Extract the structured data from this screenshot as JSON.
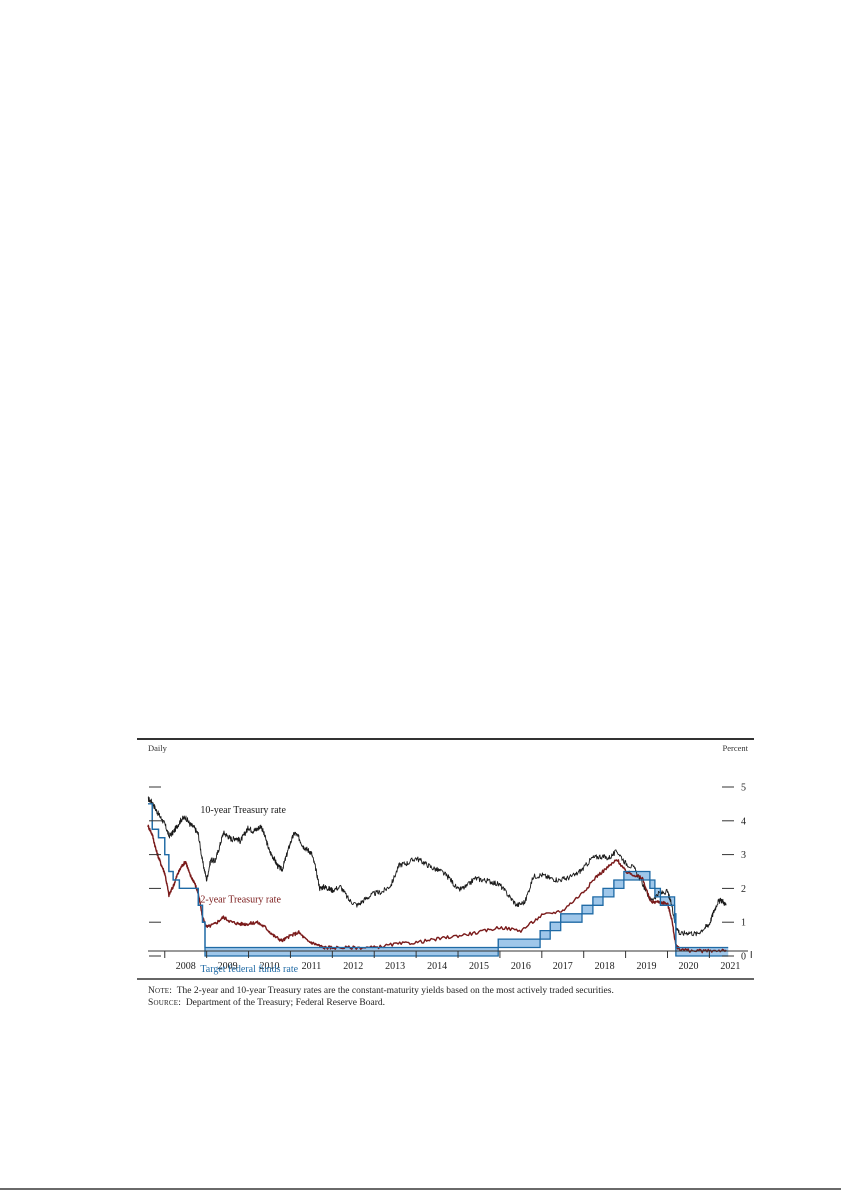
{
  "chart_data": {
    "type": "line",
    "frequency_label": "Daily",
    "unit_label": "Percent",
    "x_range": [
      2007.6,
      2021.85
    ],
    "ylim": [
      -0.3,
      5.3
    ],
    "y_ticks": [
      0,
      1,
      2,
      3,
      4,
      5
    ],
    "x_ticks": [
      {
        "label": "2008",
        "at": 2008
      },
      {
        "label": "2009",
        "at": 2009
      },
      {
        "label": "2010",
        "at": 2010
      },
      {
        "label": "2011",
        "at": 2011
      },
      {
        "label": "2012",
        "at": 2012
      },
      {
        "label": "2013",
        "at": 2013
      },
      {
        "label": "2014",
        "at": 2014
      },
      {
        "label": "2015",
        "at": 2015
      },
      {
        "label": "2016",
        "at": 2016
      },
      {
        "label": "2017",
        "at": 2017
      },
      {
        "label": "2018",
        "at": 2018
      },
      {
        "label": "2019",
        "at": 2019
      },
      {
        "label": "2020",
        "at": 2020
      },
      {
        "label": "2021",
        "at": 2021
      }
    ],
    "series": [
      {
        "name": "10-year Treasury rate",
        "color": "#1a1a1a",
        "x": [
          2007.6,
          2007.7,
          2007.8,
          2007.9,
          2008.0,
          2008.1,
          2008.2,
          2008.3,
          2008.4,
          2008.5,
          2008.6,
          2008.7,
          2008.8,
          2008.9,
          2009.0,
          2009.1,
          2009.2,
          2009.3,
          2009.4,
          2009.5,
          2009.6,
          2009.7,
          2009.8,
          2009.9,
          2010.0,
          2010.1,
          2010.2,
          2010.3,
          2010.4,
          2010.5,
          2010.6,
          2010.7,
          2010.8,
          2010.9,
          2011.0,
          2011.1,
          2011.2,
          2011.3,
          2011.4,
          2011.5,
          2011.6,
          2011.7,
          2011.8,
          2011.9,
          2012.0,
          2012.2,
          2012.4,
          2012.6,
          2012.8,
          2013.0,
          2013.2,
          2013.4,
          2013.6,
          2013.8,
          2014.0,
          2014.2,
          2014.4,
          2014.6,
          2014.8,
          2015.0,
          2015.2,
          2015.4,
          2015.6,
          2015.8,
          2016.0,
          2016.2,
          2016.4,
          2016.6,
          2016.8,
          2017.0,
          2017.2,
          2017.4,
          2017.6,
          2017.8,
          2018.0,
          2018.2,
          2018.4,
          2018.6,
          2018.8,
          2019.0,
          2019.2,
          2019.4,
          2019.6,
          2019.8,
          2020.0,
          2020.1,
          2020.2,
          2020.3,
          2020.5,
          2020.7,
          2020.9,
          2021.0,
          2021.1,
          2021.2,
          2021.3,
          2021.4
        ],
        "y": [
          4.65,
          4.55,
          4.3,
          4.1,
          3.9,
          3.55,
          3.65,
          3.85,
          4.05,
          4.1,
          3.9,
          3.8,
          3.6,
          2.8,
          2.25,
          2.85,
          2.8,
          3.2,
          3.65,
          3.55,
          3.45,
          3.5,
          3.4,
          3.6,
          3.8,
          3.7,
          3.75,
          3.85,
          3.5,
          3.1,
          2.9,
          2.65,
          2.55,
          2.95,
          3.35,
          3.65,
          3.5,
          3.25,
          3.15,
          3.05,
          2.6,
          2.0,
          2.05,
          2.0,
          1.95,
          2.05,
          1.65,
          1.5,
          1.7,
          1.85,
          1.9,
          2.1,
          2.7,
          2.75,
          2.9,
          2.75,
          2.6,
          2.5,
          2.3,
          1.95,
          2.05,
          2.3,
          2.25,
          2.2,
          2.1,
          1.8,
          1.5,
          1.6,
          2.35,
          2.4,
          2.3,
          2.25,
          2.3,
          2.4,
          2.6,
          2.9,
          2.95,
          2.9,
          3.1,
          2.75,
          2.6,
          2.15,
          1.65,
          1.85,
          1.9,
          1.5,
          0.9,
          0.65,
          0.7,
          0.65,
          0.85,
          0.95,
          1.3,
          1.6,
          1.65,
          1.5
        ]
      },
      {
        "name": "2-year Treasury rate",
        "color": "#7a1a1a",
        "x": [
          2007.6,
          2007.7,
          2007.8,
          2007.9,
          2008.0,
          2008.1,
          2008.2,
          2008.3,
          2008.4,
          2008.5,
          2008.6,
          2008.7,
          2008.8,
          2008.9,
          2009.0,
          2009.2,
          2009.4,
          2009.6,
          2009.8,
          2010.0,
          2010.2,
          2010.4,
          2010.6,
          2010.8,
          2011.0,
          2011.2,
          2011.4,
          2011.6,
          2011.8,
          2012.0,
          2012.5,
          2013.0,
          2013.5,
          2014.0,
          2014.5,
          2015.0,
          2015.5,
          2016.0,
          2016.5,
          2017.0,
          2017.5,
          2018.0,
          2018.3,
          2018.6,
          2018.8,
          2019.0,
          2019.2,
          2019.4,
          2019.6,
          2019.8,
          2020.0,
          2020.1,
          2020.2,
          2020.3,
          2020.6,
          2021.0,
          2021.4
        ],
        "y": [
          3.85,
          3.6,
          3.1,
          2.75,
          2.45,
          1.8,
          2.05,
          2.4,
          2.65,
          2.8,
          2.4,
          2.2,
          1.85,
          1.15,
          0.85,
          0.95,
          1.15,
          1.0,
          0.95,
          0.95,
          1.0,
          0.85,
          0.6,
          0.45,
          0.6,
          0.7,
          0.45,
          0.35,
          0.25,
          0.25,
          0.25,
          0.25,
          0.35,
          0.4,
          0.5,
          0.6,
          0.7,
          0.85,
          0.75,
          1.2,
          1.35,
          1.9,
          2.35,
          2.65,
          2.85,
          2.5,
          2.4,
          2.3,
          1.6,
          1.6,
          1.55,
          1.1,
          0.3,
          0.2,
          0.15,
          0.15,
          0.18
        ]
      }
    ],
    "target_range": {
      "name": "Target federal funds rate",
      "color": "#1f6aa5",
      "fill": "#9fc7ea",
      "steps": [
        {
          "from": 2007.6,
          "to": 2007.7,
          "lower": 4.5,
          "upper": 4.5
        },
        {
          "from": 2007.7,
          "to": 2007.85,
          "lower": 3.75,
          "upper": 3.75
        },
        {
          "from": 2007.85,
          "to": 2008.0,
          "lower": 3.5,
          "upper": 3.5
        },
        {
          "from": 2008.0,
          "to": 2008.1,
          "lower": 3.0,
          "upper": 3.0
        },
        {
          "from": 2008.1,
          "to": 2008.2,
          "lower": 2.5,
          "upper": 2.5
        },
        {
          "from": 2008.2,
          "to": 2008.35,
          "lower": 2.25,
          "upper": 2.25
        },
        {
          "from": 2008.35,
          "to": 2008.8,
          "lower": 2.0,
          "upper": 2.0
        },
        {
          "from": 2008.8,
          "to": 2008.9,
          "lower": 1.5,
          "upper": 1.5
        },
        {
          "from": 2008.9,
          "to": 2008.96,
          "lower": 1.0,
          "upper": 1.0
        },
        {
          "from": 2008.96,
          "to": 2015.96,
          "lower": 0.0,
          "upper": 0.25
        },
        {
          "from": 2015.96,
          "to": 2016.96,
          "lower": 0.25,
          "upper": 0.5
        },
        {
          "from": 2016.96,
          "to": 2017.2,
          "lower": 0.5,
          "upper": 0.75
        },
        {
          "from": 2017.2,
          "to": 2017.45,
          "lower": 0.75,
          "upper": 1.0
        },
        {
          "from": 2017.45,
          "to": 2017.96,
          "lower": 1.0,
          "upper": 1.25
        },
        {
          "from": 2017.96,
          "to": 2018.22,
          "lower": 1.25,
          "upper": 1.5
        },
        {
          "from": 2018.22,
          "to": 2018.46,
          "lower": 1.5,
          "upper": 1.75
        },
        {
          "from": 2018.46,
          "to": 2018.72,
          "lower": 1.75,
          "upper": 2.0
        },
        {
          "from": 2018.72,
          "to": 2018.96,
          "lower": 2.0,
          "upper": 2.25
        },
        {
          "from": 2018.96,
          "to": 2019.58,
          "lower": 2.25,
          "upper": 2.5
        },
        {
          "from": 2019.58,
          "to": 2019.7,
          "lower": 2.0,
          "upper": 2.25
        },
        {
          "from": 2019.7,
          "to": 2019.83,
          "lower": 1.75,
          "upper": 2.0
        },
        {
          "from": 2019.83,
          "to": 2020.17,
          "lower": 1.5,
          "upper": 1.75
        },
        {
          "from": 2020.17,
          "to": 2020.2,
          "lower": 1.0,
          "upper": 1.25
        },
        {
          "from": 2020.2,
          "to": 2021.45,
          "lower": 0.0,
          "upper": 0.25
        }
      ]
    },
    "annotations": [
      {
        "text": "10-year Treasury rate",
        "x": 2008.85,
        "y": 4.35,
        "color": "#1a1a1a"
      },
      {
        "text": "2-year Treasury rate",
        "x": 2008.85,
        "y": 1.7,
        "color": "#7a1a1a"
      },
      {
        "text": "Target federal funds rate",
        "x": 2008.85,
        "y": -0.35,
        "color": "#1f6aa5"
      }
    ]
  },
  "notes": {
    "note_lead": "Note:",
    "note_text": "The 2-year and 10-year Treasury rates are the constant-maturity yields based on the most actively traded securities.",
    "source_lead": "Source:",
    "source_text": "Department of the Treasury; Federal Reserve Board."
  }
}
